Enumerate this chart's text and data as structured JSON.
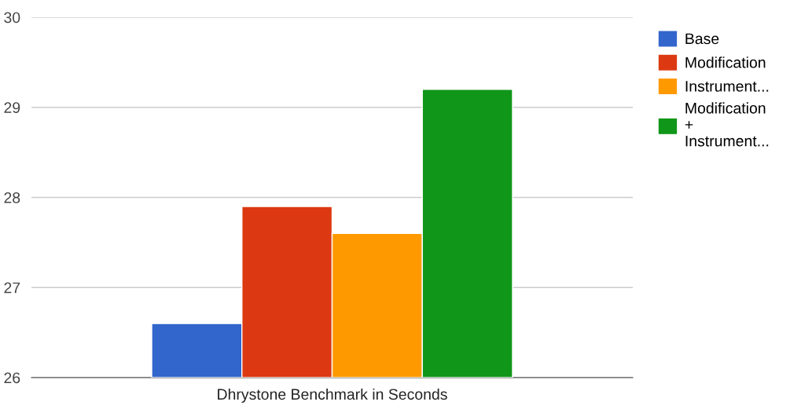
{
  "chart_data": {
    "type": "bar",
    "categories": [
      "Dhrystone Benchmark in Seconds"
    ],
    "series": [
      {
        "name": "Base",
        "color": "#3366cc",
        "values": [
          26.6
        ]
      },
      {
        "name": "Modification",
        "color": "#dc3912",
        "values": [
          27.9
        ]
      },
      {
        "name": "Instrument...",
        "color": "#ff9900",
        "values": [
          27.6
        ]
      },
      {
        "name": "Modification\n+\nInstrument...",
        "color": "#109618",
        "values": [
          29.2
        ]
      }
    ],
    "ylim": [
      26,
      30
    ],
    "yticks": [
      26,
      27,
      28,
      29,
      30
    ],
    "grid": "y",
    "legend": "top right"
  }
}
